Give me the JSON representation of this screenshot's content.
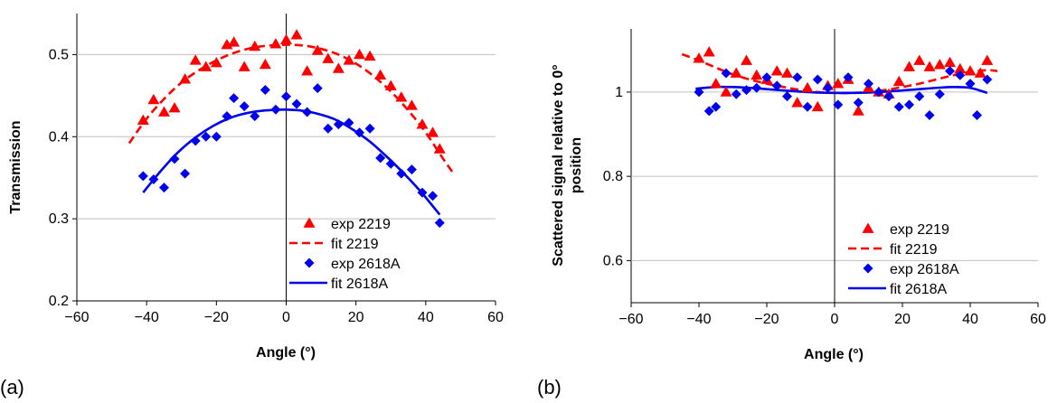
{
  "colors": {
    "red": "#ff0000",
    "blue": "#0000ee",
    "grid": "#c0c0c0"
  },
  "chart_data": [
    {
      "type": "scatter",
      "panel_label": "(a)",
      "xlabel": "Angle (°)",
      "ylabel": "Transmission",
      "xlim": [
        -60,
        60
      ],
      "ylim": [
        0.2,
        0.55
      ],
      "xticks": [
        -60,
        -40,
        -20,
        0,
        20,
        40,
        60
      ],
      "xtick_labels": [
        "−60",
        "−40",
        "−20",
        "0",
        "20",
        "40",
        "60"
      ],
      "yticks": [
        0.2,
        0.3,
        0.4,
        0.5
      ],
      "ytick_labels": [
        "0.2",
        "0.3",
        "0.4",
        "0.5"
      ],
      "grid": "horizontal",
      "legend_position": "bottom-right",
      "series": [
        {
          "name": "exp 2219",
          "kind": "points",
          "marker": "triangle",
          "color": "#ff0000",
          "x": [
            -41,
            -38,
            -35,
            -32,
            -29,
            -26,
            -23,
            -20,
            -17,
            -15,
            -12,
            -9,
            -6,
            -3,
            0,
            3,
            6,
            9,
            12,
            15,
            18,
            21,
            24,
            27,
            30,
            33,
            36,
            39,
            42,
            44
          ],
          "y": [
            0.42,
            0.445,
            0.43,
            0.435,
            0.47,
            0.493,
            0.485,
            0.49,
            0.512,
            0.515,
            0.485,
            0.51,
            0.488,
            0.513,
            0.518,
            0.524,
            0.48,
            0.505,
            0.495,
            0.483,
            0.493,
            0.5,
            0.498,
            0.475,
            0.462,
            0.448,
            0.438,
            0.415,
            0.405,
            0.385
          ]
        },
        {
          "name": "fit 2219",
          "kind": "line",
          "dash": "dashed",
          "color": "#ff0000",
          "x": [
            -45,
            -40,
            -35,
            -30,
            -25,
            -20,
            -15,
            -10,
            -5,
            0,
            5,
            10,
            15,
            20,
            25,
            30,
            35,
            40,
            45,
            48
          ],
          "y": [
            0.392,
            0.422,
            0.446,
            0.466,
            0.481,
            0.493,
            0.502,
            0.508,
            0.511,
            0.512,
            0.511,
            0.507,
            0.5,
            0.489,
            0.474,
            0.455,
            0.432,
            0.405,
            0.373,
            0.355
          ]
        },
        {
          "name": "exp 2618A",
          "kind": "points",
          "marker": "diamond",
          "color": "#0000ee",
          "x": [
            -41,
            -38,
            -35,
            -32,
            -29,
            -26,
            -23,
            -20,
            -17,
            -15,
            -12,
            -9,
            -6,
            -3,
            0,
            3,
            6,
            9,
            12,
            15,
            18,
            21,
            24,
            27,
            30,
            33,
            36,
            39,
            42,
            44
          ],
          "y": [
            0.352,
            0.348,
            0.338,
            0.373,
            0.355,
            0.395,
            0.4,
            0.4,
            0.425,
            0.447,
            0.437,
            0.425,
            0.457,
            0.433,
            0.449,
            0.44,
            0.43,
            0.459,
            0.41,
            0.415,
            0.417,
            0.405,
            0.41,
            0.374,
            0.367,
            0.355,
            0.36,
            0.332,
            0.328,
            0.295
          ]
        },
        {
          "name": "fit 2618A",
          "kind": "line",
          "dash": "solid",
          "color": "#0000ee",
          "x": [
            -41,
            -36,
            -31,
            -26,
            -21,
            -16,
            -11,
            -6,
            -1,
            0,
            4,
            9,
            14,
            19,
            24,
            29,
            34,
            39,
            44
          ],
          "y": [
            0.332,
            0.358,
            0.381,
            0.399,
            0.413,
            0.423,
            0.429,
            0.432,
            0.433,
            0.433,
            0.432,
            0.428,
            0.421,
            0.409,
            0.394,
            0.375,
            0.354,
            0.331,
            0.305
          ]
        }
      ]
    },
    {
      "type": "scatter",
      "panel_label": "(b)",
      "xlabel": "Angle (°)",
      "ylabel": "Scattered signal relative to 0° position",
      "ylabel_lines": [
        "Scattered signal relative to 0°",
        "position"
      ],
      "xlim": [
        -60,
        60
      ],
      "ylim": [
        0.5,
        1.15
      ],
      "xticks": [
        -60,
        -40,
        -20,
        0,
        20,
        40,
        60
      ],
      "xtick_labels": [
        "−60",
        "−40",
        "−20",
        "0",
        "20",
        "40",
        "60"
      ],
      "yticks": [
        0.6,
        0.8,
        1.0
      ],
      "ytick_labels": [
        "0.6",
        "0.8",
        "1"
      ],
      "grid": "horizontal",
      "legend_position": "bottom-right",
      "series": [
        {
          "name": "exp 2219",
          "kind": "points",
          "marker": "triangle",
          "color": "#ff0000",
          "x": [
            -40,
            -37,
            -35,
            -32,
            -29,
            -26,
            -23,
            -20,
            -17,
            -14,
            -11,
            -8,
            -5,
            -2,
            1,
            4,
            7,
            10,
            13,
            16,
            19,
            22,
            25,
            28,
            31,
            34,
            37,
            40,
            43,
            45
          ],
          "y": [
            1.08,
            1.095,
            1.02,
            1.0,
            1.045,
            1.075,
            1.04,
            1.03,
            1.05,
            1.045,
            0.975,
            1.01,
            0.965,
            1.015,
            1.02,
            1.03,
            0.955,
            1.01,
            1.0,
            0.995,
            1.025,
            1.06,
            1.075,
            1.06,
            1.065,
            1.07,
            1.055,
            1.05,
            1.045,
            1.075
          ]
        },
        {
          "name": "fit 2219",
          "kind": "line",
          "dash": "dashed",
          "color": "#ff0000",
          "x": [
            -45,
            -40,
            -35,
            -30,
            -25,
            -20,
            -15,
            -10,
            -5,
            0,
            5,
            10,
            15,
            20,
            25,
            30,
            35,
            40,
            45,
            48
          ],
          "y": [
            1.09,
            1.075,
            1.058,
            1.042,
            1.03,
            1.02,
            1.012,
            1.005,
            1.0,
            0.998,
            0.998,
            1.0,
            1.005,
            1.012,
            1.02,
            1.03,
            1.04,
            1.048,
            1.052,
            1.05
          ]
        },
        {
          "name": "exp 2618A",
          "kind": "points",
          "marker": "diamond",
          "color": "#0000ee",
          "x": [
            -40,
            -37,
            -35,
            -32,
            -29,
            -26,
            -23,
            -20,
            -17,
            -14,
            -11,
            -8,
            -5,
            -2,
            1,
            4,
            7,
            10,
            13,
            16,
            19,
            22,
            25,
            28,
            31,
            34,
            37,
            40,
            42,
            45
          ],
          "y": [
            1.0,
            0.955,
            0.965,
            1.045,
            0.995,
            1.005,
            1.01,
            1.035,
            1.015,
            0.99,
            1.035,
            0.965,
            1.03,
            1.01,
            0.97,
            1.035,
            0.975,
            1.02,
            1.0,
            0.99,
            0.965,
            0.97,
            0.99,
            0.945,
            0.995,
            1.05,
            1.04,
            1.02,
            0.945,
            1.03
          ]
        },
        {
          "name": "fit 2618A",
          "kind": "line",
          "dash": "solid",
          "color": "#0000ee",
          "x": [
            -41,
            -35,
            -30,
            -25,
            -20,
            -15,
            -10,
            -5,
            0,
            5,
            10,
            15,
            20,
            25,
            30,
            35,
            40,
            45
          ],
          "y": [
            1.008,
            1.012,
            1.012,
            1.01,
            1.007,
            1.004,
            1.001,
            0.999,
            0.998,
            0.998,
            0.999,
            1.001,
            1.004,
            1.007,
            1.01,
            1.012,
            1.01,
            0.998
          ]
        }
      ]
    }
  ]
}
